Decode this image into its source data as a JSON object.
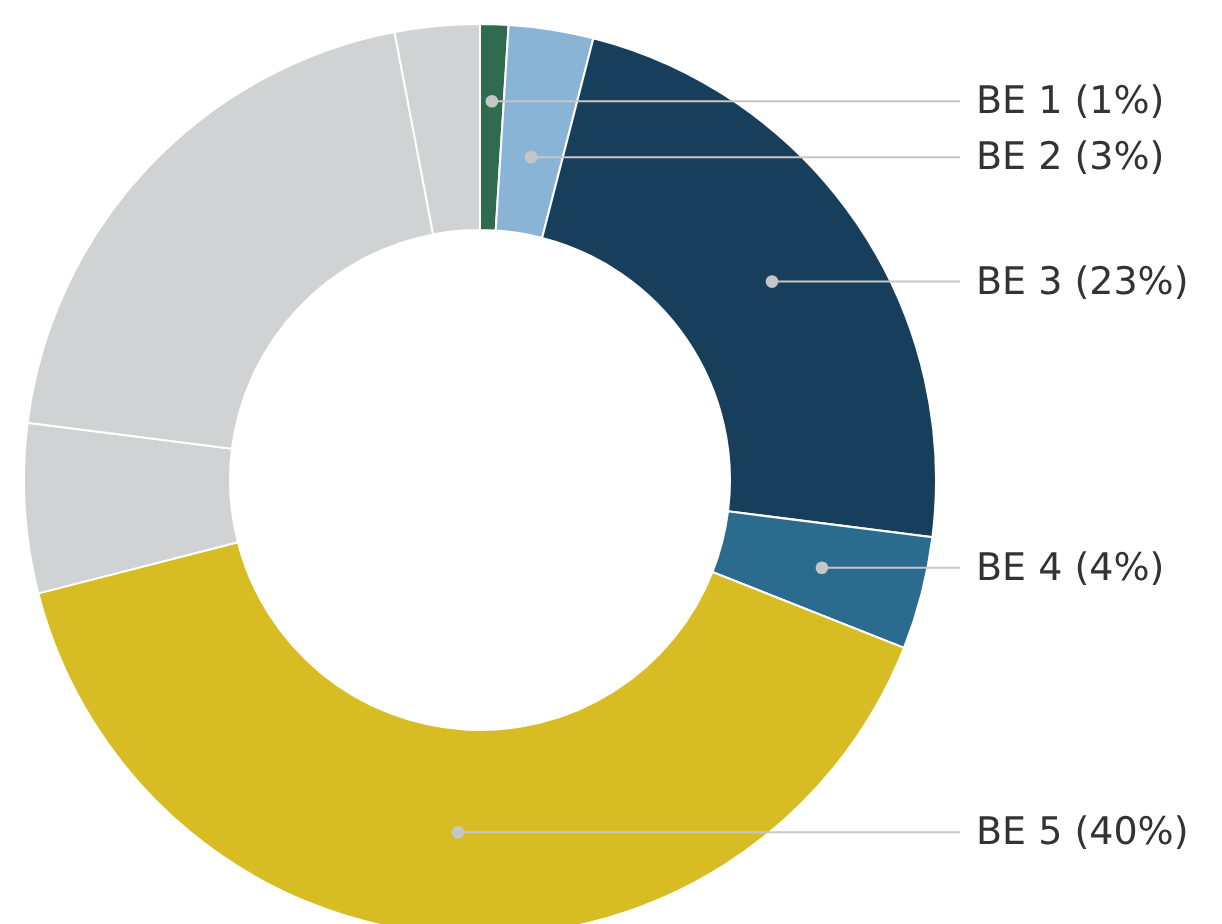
{
  "chart_data": {
    "type": "donut",
    "categories": [
      "BE 1 (1%)",
      "BE 2 (3%)",
      "BE 3 (23%)",
      "BE 4 (4%)",
      "BE 5 (40%)",
      null,
      null,
      null
    ],
    "values": [
      1,
      3,
      23,
      4,
      40,
      6,
      20,
      3
    ],
    "colors": [
      "#2f6b4f",
      "#8ab4d6",
      "#173f5c",
      "#2a6b8e",
      "#d8bc24",
      "#d1d2d4",
      "#d1d2d4",
      "#d1d2d4"
    ]
  }
}
